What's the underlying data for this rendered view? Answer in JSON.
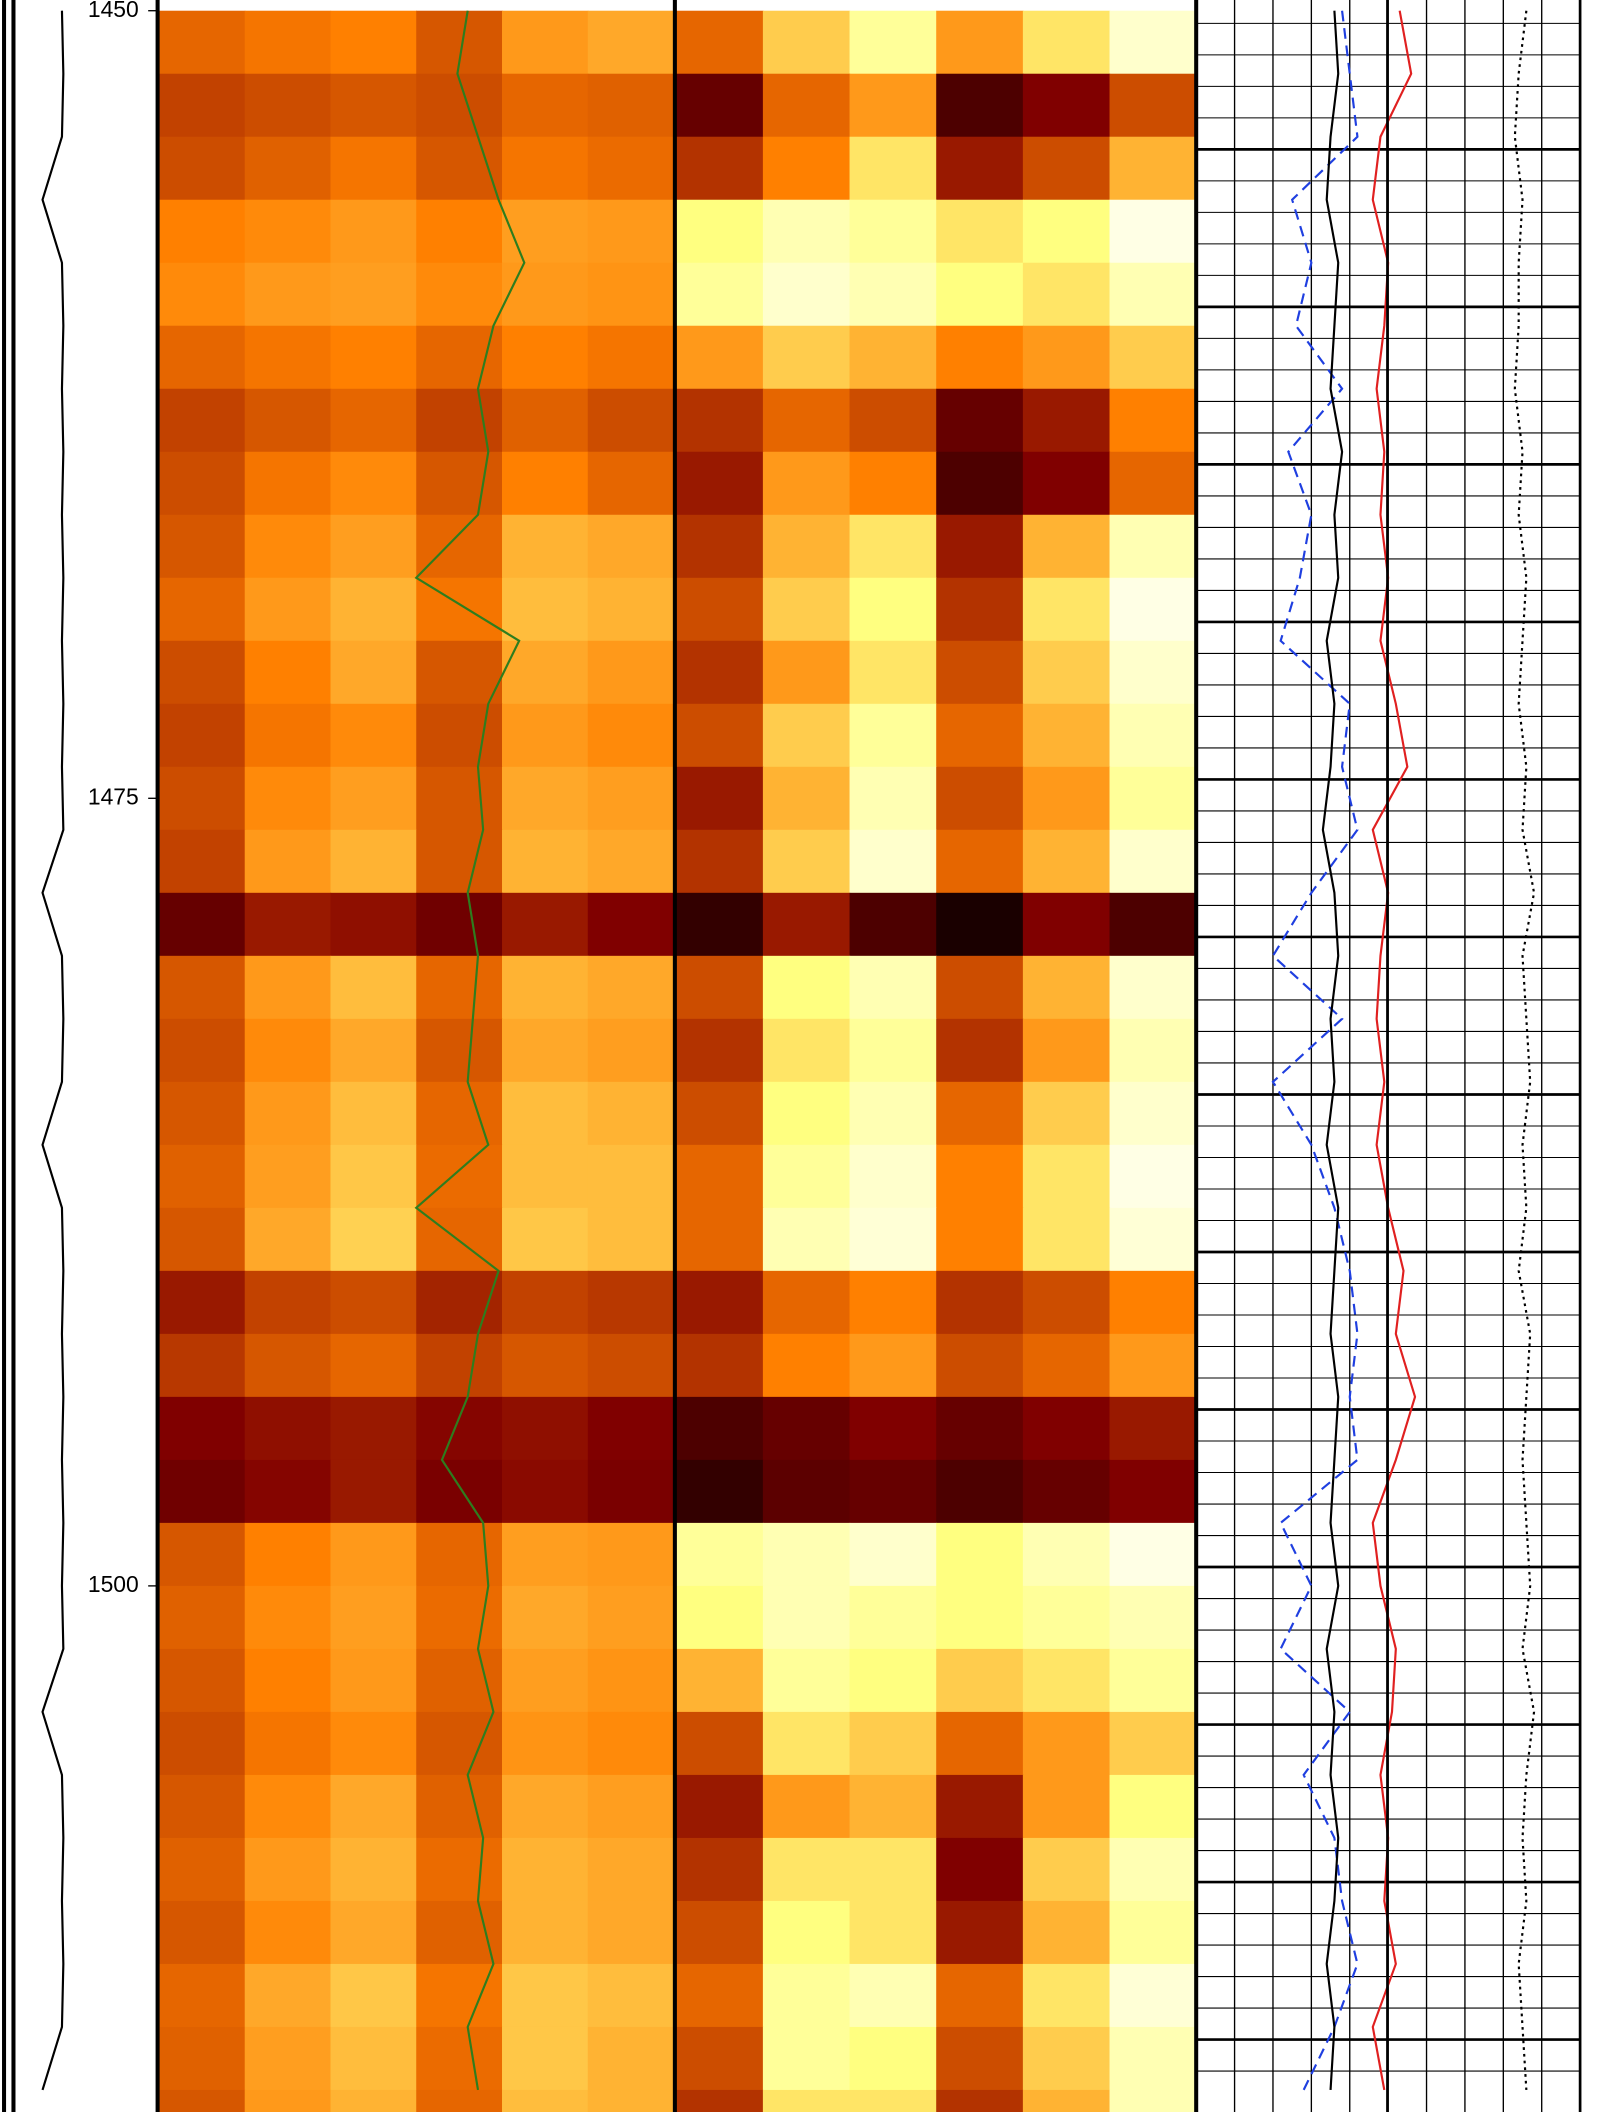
{
  "chart_data": {
    "type": "well-log",
    "ylim": [
      1449.66,
      1516.7
    ],
    "yticks": [
      1450,
      1475,
      1500
    ],
    "grid": true,
    "depth": [
      1450,
      1452,
      1454,
      1456,
      1458,
      1460,
      1462,
      1464,
      1466,
      1468,
      1470,
      1472,
      1474,
      1476,
      1478,
      1480,
      1482,
      1484,
      1486,
      1488,
      1490,
      1492,
      1494,
      1496,
      1498,
      1500,
      1502,
      1504,
      1506,
      1508,
      1510,
      1512,
      1514,
      1516
    ],
    "heatmaps": [
      {
        "track": "heat-left",
        "values": [
          [
            0.45,
            0.48,
            0.5,
            0.42,
            0.55,
            0.58
          ],
          [
            0.38,
            0.4,
            0.42,
            0.4,
            0.45,
            0.44
          ],
          [
            0.4,
            0.44,
            0.48,
            0.42,
            0.48,
            0.46
          ],
          [
            0.5,
            0.52,
            0.55,
            0.5,
            0.56,
            0.55
          ],
          [
            0.52,
            0.55,
            0.56,
            0.52,
            0.55,
            0.54
          ],
          [
            0.45,
            0.48,
            0.5,
            0.45,
            0.5,
            0.48
          ],
          [
            0.38,
            0.42,
            0.45,
            0.38,
            0.44,
            0.4
          ],
          [
            0.4,
            0.48,
            0.52,
            0.42,
            0.5,
            0.45
          ],
          [
            0.42,
            0.52,
            0.56,
            0.45,
            0.6,
            0.58
          ],
          [
            0.45,
            0.55,
            0.6,
            0.48,
            0.62,
            0.6
          ],
          [
            0.4,
            0.5,
            0.58,
            0.42,
            0.58,
            0.55
          ],
          [
            0.38,
            0.48,
            0.52,
            0.4,
            0.55,
            0.52
          ],
          [
            0.4,
            0.52,
            0.56,
            0.42,
            0.58,
            0.56
          ],
          [
            0.38,
            0.55,
            0.6,
            0.42,
            0.6,
            0.58
          ],
          [
            0.2,
            0.3,
            0.28,
            0.22,
            0.3,
            0.25
          ],
          [
            0.42,
            0.55,
            0.62,
            0.45,
            0.6,
            0.58
          ],
          [
            0.4,
            0.52,
            0.58,
            0.42,
            0.58,
            0.56
          ],
          [
            0.42,
            0.55,
            0.62,
            0.45,
            0.62,
            0.6
          ],
          [
            0.44,
            0.56,
            0.64,
            0.46,
            0.62,
            0.62
          ],
          [
            0.42,
            0.58,
            0.66,
            0.45,
            0.64,
            0.62
          ],
          [
            0.3,
            0.38,
            0.4,
            0.32,
            0.38,
            0.36
          ],
          [
            0.36,
            0.42,
            0.45,
            0.38,
            0.42,
            0.4
          ],
          [
            0.25,
            0.28,
            0.3,
            0.26,
            0.28,
            0.25
          ],
          [
            0.22,
            0.26,
            0.3,
            0.24,
            0.27,
            0.24
          ],
          [
            0.42,
            0.5,
            0.55,
            0.45,
            0.56,
            0.55
          ],
          [
            0.44,
            0.52,
            0.56,
            0.46,
            0.58,
            0.56
          ],
          [
            0.42,
            0.5,
            0.55,
            0.44,
            0.56,
            0.54
          ],
          [
            0.4,
            0.48,
            0.52,
            0.42,
            0.54,
            0.52
          ],
          [
            0.42,
            0.52,
            0.58,
            0.44,
            0.58,
            0.56
          ],
          [
            0.44,
            0.55,
            0.6,
            0.46,
            0.6,
            0.58
          ],
          [
            0.42,
            0.52,
            0.58,
            0.44,
            0.6,
            0.58
          ],
          [
            0.45,
            0.58,
            0.64,
            0.48,
            0.64,
            0.62
          ],
          [
            0.44,
            0.56,
            0.62,
            0.46,
            0.64,
            0.6
          ],
          [
            0.42,
            0.55,
            0.6,
            0.45,
            0.62,
            0.6
          ]
        ]
      },
      {
        "track": "heat-right",
        "values": [
          [
            0.45,
            0.65,
            0.8,
            0.55,
            0.7,
            0.9
          ],
          [
            0.2,
            0.45,
            0.55,
            0.15,
            0.25,
            0.4
          ],
          [
            0.35,
            0.5,
            0.7,
            0.3,
            0.4,
            0.6
          ],
          [
            0.75,
            0.85,
            0.8,
            0.7,
            0.75,
            0.95
          ],
          [
            0.8,
            0.9,
            0.85,
            0.75,
            0.7,
            0.85
          ],
          [
            0.55,
            0.65,
            0.6,
            0.5,
            0.55,
            0.65
          ],
          [
            0.35,
            0.45,
            0.4,
            0.2,
            0.3,
            0.5
          ],
          [
            0.3,
            0.55,
            0.5,
            0.15,
            0.25,
            0.45
          ],
          [
            0.35,
            0.6,
            0.7,
            0.3,
            0.6,
            0.85
          ],
          [
            0.4,
            0.65,
            0.75,
            0.35,
            0.7,
            0.95
          ],
          [
            0.35,
            0.55,
            0.7,
            0.4,
            0.65,
            0.9
          ],
          [
            0.4,
            0.65,
            0.8,
            0.45,
            0.6,
            0.85
          ],
          [
            0.3,
            0.6,
            0.85,
            0.4,
            0.55,
            0.8
          ],
          [
            0.35,
            0.65,
            0.9,
            0.45,
            0.6,
            0.9
          ],
          [
            0.1,
            0.3,
            0.15,
            0.05,
            0.25,
            0.15
          ],
          [
            0.4,
            0.75,
            0.85,
            0.4,
            0.6,
            0.9
          ],
          [
            0.35,
            0.7,
            0.8,
            0.35,
            0.55,
            0.85
          ],
          [
            0.4,
            0.75,
            0.85,
            0.45,
            0.65,
            0.9
          ],
          [
            0.45,
            0.8,
            0.9,
            0.5,
            0.7,
            0.95
          ],
          [
            0.45,
            0.85,
            0.92,
            0.5,
            0.7,
            0.92
          ],
          [
            0.3,
            0.45,
            0.5,
            0.35,
            0.4,
            0.5
          ],
          [
            0.35,
            0.5,
            0.55,
            0.4,
            0.45,
            0.55
          ],
          [
            0.15,
            0.2,
            0.25,
            0.2,
            0.25,
            0.3
          ],
          [
            0.1,
            0.18,
            0.2,
            0.15,
            0.2,
            0.25
          ],
          [
            0.8,
            0.85,
            0.9,
            0.75,
            0.85,
            0.95
          ],
          [
            0.75,
            0.85,
            0.8,
            0.75,
            0.8,
            0.85
          ],
          [
            0.6,
            0.8,
            0.75,
            0.65,
            0.7,
            0.8
          ],
          [
            0.4,
            0.7,
            0.65,
            0.45,
            0.55,
            0.65
          ],
          [
            0.3,
            0.55,
            0.6,
            0.3,
            0.55,
            0.75
          ],
          [
            0.35,
            0.7,
            0.7,
            0.25,
            0.65,
            0.85
          ],
          [
            0.4,
            0.75,
            0.7,
            0.3,
            0.6,
            0.8
          ],
          [
            0.45,
            0.8,
            0.85,
            0.45,
            0.7,
            0.92
          ],
          [
            0.4,
            0.8,
            0.75,
            0.4,
            0.65,
            0.85
          ],
          [
            0.35,
            0.7,
            0.7,
            0.35,
            0.6,
            0.85
          ]
        ]
      }
    ],
    "curves": [
      {
        "track": "left",
        "color": "#000000",
        "dash": "none",
        "values": [
          0.33,
          0.34,
          0.33,
          0.19,
          0.33,
          0.34,
          0.33,
          0.34,
          0.33,
          0.34,
          0.33,
          0.34,
          0.33,
          0.34,
          0.19,
          0.33,
          0.34,
          0.33,
          0.19,
          0.33,
          0.34,
          0.33,
          0.34,
          0.33,
          0.34,
          0.33,
          0.34,
          0.19,
          0.33,
          0.34,
          0.33,
          0.34,
          0.33,
          0.19
        ]
      },
      {
        "track": "heat-left",
        "color": "#2e7d1e",
        "dash": "none",
        "values": [
          0.6,
          0.58,
          0.62,
          0.66,
          0.71,
          0.65,
          0.62,
          0.64,
          0.62,
          0.5,
          0.7,
          0.64,
          0.62,
          0.63,
          0.6,
          0.62,
          0.61,
          0.6,
          0.64,
          0.5,
          0.66,
          0.62,
          0.6,
          0.55,
          0.63,
          0.64,
          0.62,
          0.65,
          0.6,
          0.63,
          0.62,
          0.65,
          0.6,
          0.62
        ]
      },
      {
        "track": "grid",
        "color": "#1f3fe0",
        "dash": "8 5",
        "values": [
          0.38,
          0.4,
          0.42,
          0.25,
          0.3,
          0.26,
          0.38,
          0.24,
          0.3,
          0.27,
          0.22,
          0.4,
          0.38,
          0.42,
          0.3,
          0.2,
          0.38,
          0.2,
          0.3,
          0.36,
          0.4,
          0.42,
          0.4,
          0.42,
          0.22,
          0.3,
          0.22,
          0.4,
          0.28,
          0.36,
          0.38,
          0.42,
          0.36,
          0.28
        ]
      },
      {
        "track": "grid",
        "color": "#000000",
        "dash": "none",
        "values": [
          0.36,
          0.37,
          0.35,
          0.34,
          0.37,
          0.36,
          0.35,
          0.38,
          0.36,
          0.37,
          0.34,
          0.36,
          0.35,
          0.33,
          0.36,
          0.37,
          0.35,
          0.36,
          0.34,
          0.37,
          0.36,
          0.35,
          0.37,
          0.36,
          0.35,
          0.37,
          0.34,
          0.36,
          0.35,
          0.37,
          0.36,
          0.34,
          0.36,
          0.35
        ]
      },
      {
        "track": "grid",
        "color": "#e02020",
        "dash": "none",
        "values": [
          0.53,
          0.56,
          0.48,
          0.46,
          0.5,
          0.49,
          0.47,
          0.49,
          0.48,
          0.5,
          0.48,
          0.52,
          0.55,
          0.46,
          0.5,
          0.48,
          0.47,
          0.49,
          0.47,
          0.5,
          0.54,
          0.52,
          0.57,
          0.52,
          0.46,
          0.48,
          0.52,
          0.51,
          0.48,
          0.5,
          0.49,
          0.52,
          0.46,
          0.49
        ]
      },
      {
        "track": "grid",
        "color": "#000000",
        "dash": "2 3",
        "values": [
          0.86,
          0.84,
          0.83,
          0.85,
          0.84,
          0.84,
          0.83,
          0.85,
          0.84,
          0.86,
          0.85,
          0.84,
          0.86,
          0.85,
          0.88,
          0.85,
          0.86,
          0.87,
          0.85,
          0.86,
          0.84,
          0.87,
          0.86,
          0.85,
          0.86,
          0.87,
          0.85,
          0.88,
          0.86,
          0.85,
          0.86,
          0.84,
          0.85,
          0.86
        ]
      }
    ]
  }
}
